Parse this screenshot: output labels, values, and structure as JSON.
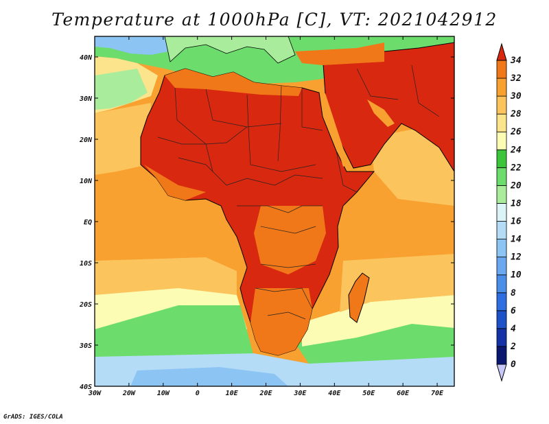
{
  "title": "Temperature at 1000hPa [C], VT: 2021042912",
  "credit": "GrADS: IGES/COLA",
  "map": {
    "lon_range": [
      -30,
      75
    ],
    "lat_range": [
      -40,
      45
    ],
    "lon_ticks": [
      "30W",
      "20W",
      "10W",
      "0",
      "10E",
      "20E",
      "30E",
      "40E",
      "50E",
      "60E",
      "70E"
    ],
    "lat_ticks": [
      "40S",
      "30S",
      "20S",
      "10S",
      "EQ",
      "10N",
      "20N",
      "30N",
      "40N"
    ]
  },
  "colorbar": {
    "labels": [
      "0",
      "2",
      "4",
      "6",
      "8",
      "10",
      "12",
      "14",
      "16",
      "18",
      "20",
      "22",
      "24",
      "26",
      "28",
      "30",
      "32",
      "34"
    ],
    "colors": [
      "#0a1670",
      "#1432a6",
      "#1e50c8",
      "#2f6ee0",
      "#4a8ee8",
      "#6ba8f0",
      "#8cc4f4",
      "#b4dcf6",
      "#dcf4f8",
      "#a8ec9c",
      "#6cdc6c",
      "#3cc43c",
      "#fcfcb4",
      "#fce48c",
      "#fcc45c",
      "#f8a030",
      "#f07818",
      "#e44818",
      "#d82810"
    ]
  }
}
